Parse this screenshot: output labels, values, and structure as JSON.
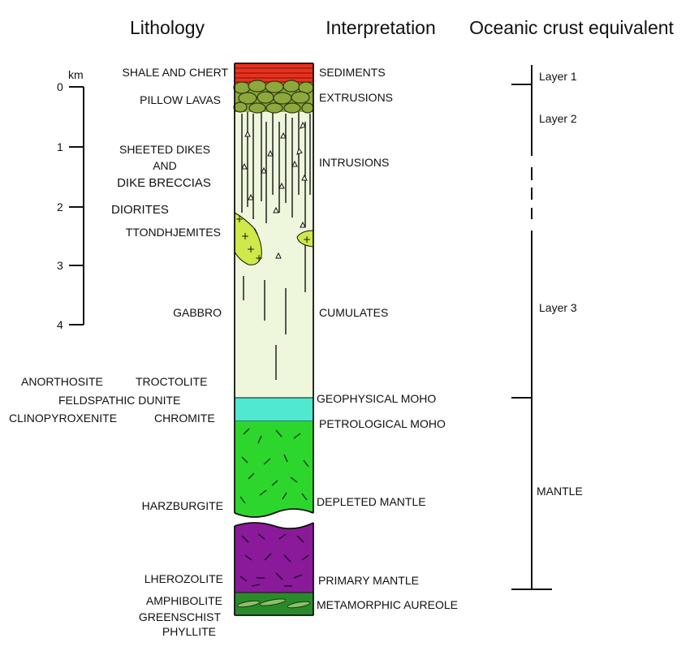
{
  "headers": {
    "lithology": "Lithology",
    "interpretation": "Interpretation",
    "oceanic": "Oceanic crust equivalent"
  },
  "scale": {
    "unit": "km",
    "ticks": [
      "0",
      "1",
      "2",
      "3",
      "4"
    ]
  },
  "lithology_labels": {
    "shale": "SHALE AND CHERT",
    "pillow": "PILLOW LAVAS",
    "sheeted1": "SHEETED DIKES",
    "sheeted2": "AND",
    "sheeted3": "DIKE BRECCIAS",
    "diorites": "DIORITES",
    "trond": "TTONDHJEMITES",
    "gabbro": "GABBRO",
    "anorthosite": "ANORTHOSITE",
    "troctolite": "TROCTOLITE",
    "feldspathic": "FELDSPATHIC DUNITE",
    "clinopyroxenite": "CLINOPYROXENITE",
    "chromite": "CHROMITE",
    "harzburgite": "HARZBURGITE",
    "lherzolite": "LHEROZOLITE",
    "amphibolite": "AMPHIBOLITE",
    "greenschist": "GREENSCHIST",
    "phyllite": "PHYLLITE"
  },
  "interpretation_labels": {
    "sediments": "SEDIMENTS",
    "extrusions": "EXTRUSIONS",
    "intrusions": "INTRUSIONS",
    "cumulates": "CUMULATES",
    "geo_moho": "GEOPHYSICAL MOHO",
    "petro_moho": "PETROLOGICAL MOHO",
    "depleted": "DEPLETED MANTLE",
    "primary": "PRIMARY MANTLE",
    "aureole": "METAMORPHIC AUREOLE"
  },
  "oceanic_labels": {
    "layer1": "Layer 1",
    "layer2": "Layer 2",
    "layer3": "Layer 3",
    "mantle": "MANTLE"
  },
  "colors": {
    "sediments": "#e8321e",
    "pillow": "#8ea83c",
    "crust": "#eef7dc",
    "trond": "#cfe84a",
    "geo_moho": "#4fe8d0",
    "depleted": "#2dd62d",
    "primary": "#8a1a9a",
    "aureole": "#2a8a2a"
  }
}
